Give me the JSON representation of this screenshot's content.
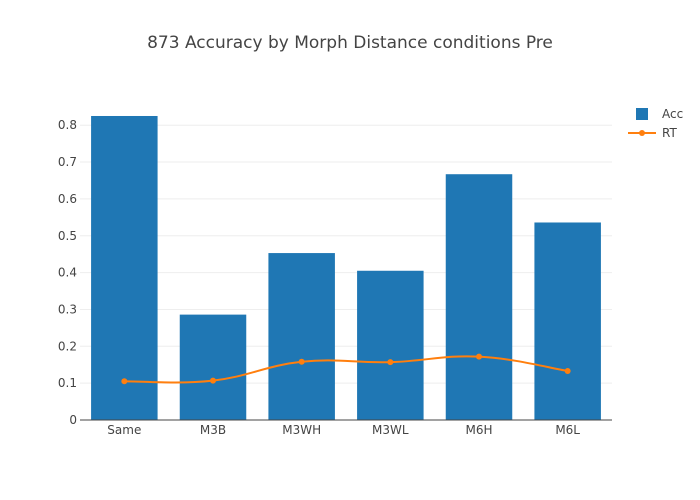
{
  "chart_data": {
    "type": "bar",
    "title": "873 Accuracy by Morph Distance conditions Pre",
    "categories": [
      "Same",
      "M3B",
      "M3WH",
      "M3WL",
      "M6H",
      "M6L"
    ],
    "series": [
      {
        "name": "Acc",
        "type": "bar",
        "color": "#1f77b4",
        "values": [
          0.825,
          0.286,
          0.453,
          0.405,
          0.667,
          0.536
        ]
      },
      {
        "name": "RT",
        "type": "line",
        "color": "#ff7f0e",
        "values": [
          0.105,
          0.107,
          0.158,
          0.157,
          0.172,
          0.133
        ]
      }
    ],
    "y_ticks": [
      "0",
      "0.1",
      "0.2",
      "0.3",
      "0.4",
      "0.5",
      "0.6",
      "0.7",
      "0.8"
    ],
    "ylim": [
      0,
      0.8684
    ],
    "grid": true,
    "legend_position": "top-right"
  }
}
